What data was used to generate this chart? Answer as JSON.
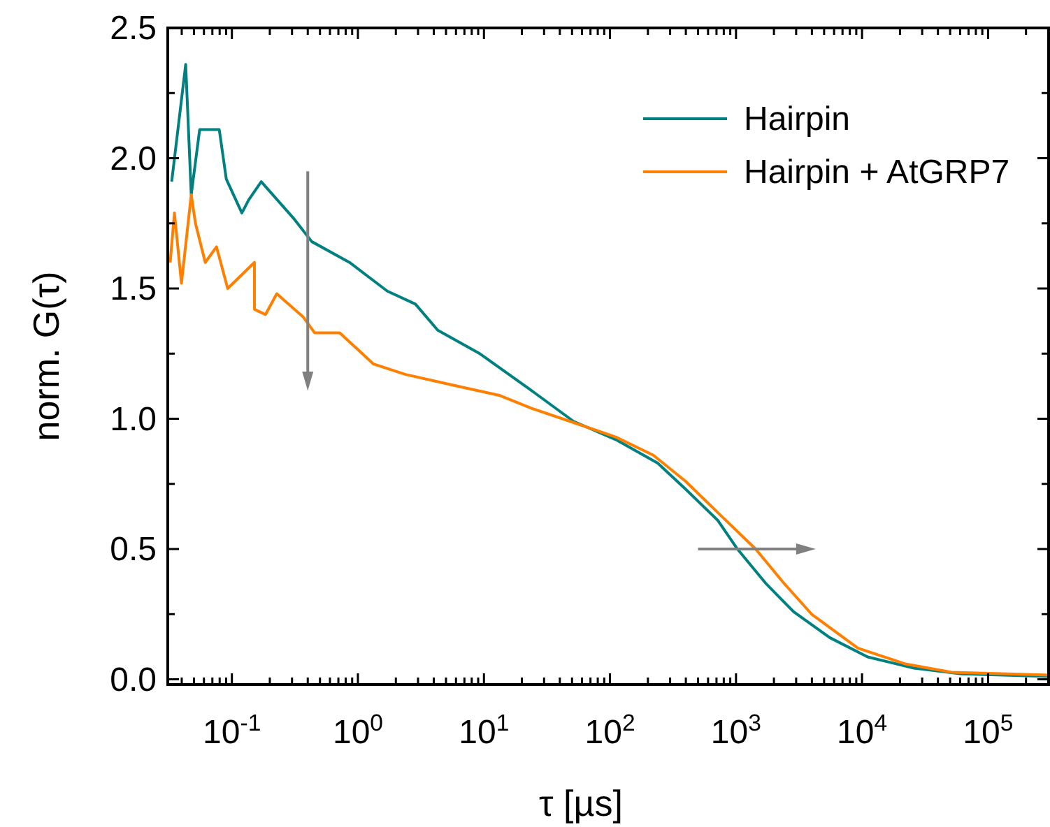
{
  "chart_data": {
    "type": "line",
    "xlabel": "τ [µs]",
    "ylabel": "norm. G(τ)",
    "log": "x",
    "legend": "top right",
    "grid": false,
    "line_style": "solid",
    "marker": "none",
    "xlim": [
      0.031,
      310000
    ],
    "ylim": [
      -0.02,
      2.5
    ],
    "xticks": [
      {
        "value": 0.04,
        "label": null
      },
      {
        "value": 0.05,
        "label": null
      },
      {
        "value": 0.06,
        "label": null
      },
      {
        "value": 0.07,
        "label": null
      },
      {
        "value": 0.08,
        "label": null
      },
      {
        "value": 0.09,
        "label": null
      },
      {
        "value": 0.1,
        "label": "10$^{-1}$"
      },
      {
        "value": 0.2,
        "label": null
      },
      {
        "value": 0.3,
        "label": null
      },
      {
        "value": 0.4,
        "label": null
      },
      {
        "value": 0.5,
        "label": null
      },
      {
        "value": 0.6,
        "label": null
      },
      {
        "value": 0.7,
        "label": null
      },
      {
        "value": 0.8,
        "label": null
      },
      {
        "value": 0.9,
        "label": null
      },
      {
        "value": 1,
        "label": "10$^{0}$"
      },
      {
        "value": 2,
        "label": null
      },
      {
        "value": 3,
        "label": null
      },
      {
        "value": 4,
        "label": null
      },
      {
        "value": 5,
        "label": null
      },
      {
        "value": 6,
        "label": null
      },
      {
        "value": 7,
        "label": null
      },
      {
        "value": 8,
        "label": null
      },
      {
        "value": 9,
        "label": null
      },
      {
        "value": 10,
        "label": "10$^{1}$"
      },
      {
        "value": 20,
        "label": null
      },
      {
        "value": 30,
        "label": null
      },
      {
        "value": 40,
        "label": null
      },
      {
        "value": 50,
        "label": null
      },
      {
        "value": 60,
        "label": null
      },
      {
        "value": 70,
        "label": null
      },
      {
        "value": 80,
        "label": null
      },
      {
        "value": 90,
        "label": null
      },
      {
        "value": 100,
        "label": "10$^{2}$"
      },
      {
        "value": 200,
        "label": null
      },
      {
        "value": 300,
        "label": null
      },
      {
        "value": 400,
        "label": null
      },
      {
        "value": 500,
        "label": null
      },
      {
        "value": 600,
        "label": null
      },
      {
        "value": 700,
        "label": null
      },
      {
        "value": 800,
        "label": null
      },
      {
        "value": 900,
        "label": null
      },
      {
        "value": 1000,
        "label": "10$^{3}$"
      },
      {
        "value": 2000,
        "label": null
      },
      {
        "value": 3000,
        "label": null
      },
      {
        "value": 4000,
        "label": null
      },
      {
        "value": 5000,
        "label": null
      },
      {
        "value": 6000,
        "label": null
      },
      {
        "value": 7000,
        "label": null
      },
      {
        "value": 8000,
        "label": null
      },
      {
        "value": 9000,
        "label": null
      },
      {
        "value": 10000,
        "label": "10$^{4}$"
      },
      {
        "value": 20000,
        "label": null
      },
      {
        "value": 30000,
        "label": null
      },
      {
        "value": 40000,
        "label": null
      },
      {
        "value": 50000,
        "label": null
      },
      {
        "value": 60000,
        "label": null
      },
      {
        "value": 70000,
        "label": null
      },
      {
        "value": 80000,
        "label": null
      },
      {
        "value": 90000,
        "label": null
      },
      {
        "value": 100000,
        "label": "10$^{5}$"
      },
      {
        "value": 200000,
        "label": null
      },
      {
        "value": 300000,
        "label": null
      }
    ],
    "yticks": [
      {
        "value": 0,
        "label": "0.0"
      },
      {
        "value": 0.25,
        "label": null
      },
      {
        "value": 0.5,
        "label": "0.5"
      },
      {
        "value": 0.75,
        "label": null
      },
      {
        "value": 1,
        "label": "1.0"
      },
      {
        "value": 1.25,
        "label": null
      },
      {
        "value": 1.5,
        "label": "1.5"
      },
      {
        "value": 1.75,
        "label": null
      },
      {
        "value": 2,
        "label": "2.0"
      },
      {
        "value": 2.25,
        "label": null
      },
      {
        "value": 2.5,
        "label": "2.5"
      }
    ],
    "series": [
      {
        "name": "Hairpin",
        "color": "#008080",
        "x": [
          0.0333,
          0.043,
          0.0476,
          0.0555,
          0.0794,
          0.0903,
          0.12,
          0.136,
          0.171,
          0.308,
          0.43,
          0.858,
          1.71,
          2.86,
          4.3,
          9.26,
          22.1,
          51.4,
          111,
          239,
          398,
          717,
          1026,
          1711,
          2856,
          5546,
          11070,
          25770,
          61490,
          308000
        ],
        "values": [
          1.91,
          2.36,
          1.86,
          2.11,
          2.11,
          1.92,
          1.79,
          1.84,
          1.91,
          1.77,
          1.68,
          1.6,
          1.49,
          1.44,
          1.34,
          1.25,
          1.12,
          0.99,
          0.92,
          0.83,
          0.73,
          0.61,
          0.5,
          0.37,
          0.26,
          0.16,
          0.086,
          0.043,
          0.021,
          0.011
        ]
      },
      {
        "name": "Hairpin + AtGRP7",
        "color": "#ff7f00",
        "x": [
          0.0324,
          0.035,
          0.0398,
          0.0476,
          0.0514,
          0.0615,
          0.0755,
          0.0926,
          0.151,
          0.151,
          0.185,
          0.227,
          0.369,
          0.453,
          0.717,
          1.33,
          2.39,
          5.55,
          13.2,
          23.9,
          55.5,
          111,
          221,
          398,
          717,
          1431,
          2387,
          3981,
          9260,
          22090,
          51410,
          308000
        ],
        "values": [
          1.6,
          1.79,
          1.52,
          1.86,
          1.75,
          1.6,
          1.66,
          1.5,
          1.6,
          1.42,
          1.4,
          1.48,
          1.39,
          1.33,
          1.33,
          1.21,
          1.17,
          1.13,
          1.09,
          1.04,
          0.98,
          0.93,
          0.86,
          0.76,
          0.64,
          0.5,
          0.37,
          0.25,
          0.12,
          0.059,
          0.027,
          0.016
        ]
      }
    ]
  }
}
